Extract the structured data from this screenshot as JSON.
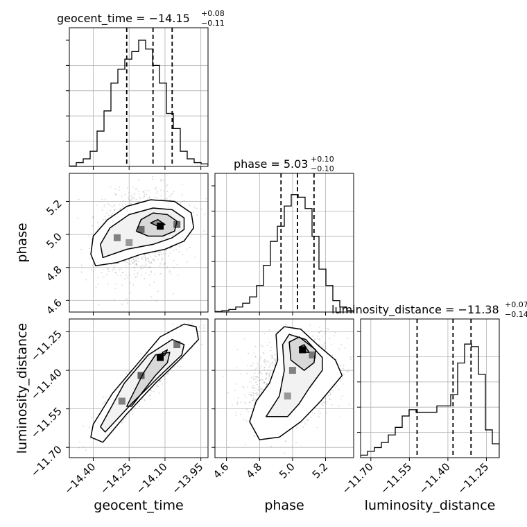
{
  "chart_data": {
    "type": "corner",
    "parameters": [
      "geocent_time",
      "phase",
      "luminosity_distance"
    ],
    "titles": [
      {
        "param": "geocent_time",
        "prefix": "geocent_time = −14.15",
        "plus": "+0.08",
        "minus": "−0.11"
      },
      {
        "param": "phase",
        "prefix": "phase = 5.03",
        "plus": "+0.10",
        "minus": "−0.10"
      },
      {
        "param": "luminosity_distance",
        "prefix": "luminosity_distance = −11.38",
        "plus": "+0.07",
        "minus": "−0.14"
      }
    ],
    "axis_labels": {
      "x": [
        "geocent_time",
        "phase",
        "luminosity_distance"
      ],
      "y": [
        "phase",
        "luminosity_distance"
      ]
    },
    "ranges": {
      "geocent_time": [
        -14.5,
        -13.92
      ],
      "phase": [
        4.53,
        5.37
      ],
      "luminosity_distance": [
        -11.74,
        -11.2
      ]
    },
    "ticks": {
      "geocent_time": {
        "values": [
          -14.4,
          -14.25,
          -14.1,
          -13.95
        ],
        "labels": [
          "−14.40",
          "−14.25",
          "−14.10",
          "−13.95"
        ]
      },
      "phase": {
        "values": [
          4.6,
          4.8,
          5.0,
          5.2
        ],
        "labels": [
          "4.6",
          "4.8",
          "5.0",
          "5.2"
        ]
      },
      "luminosity_distance": {
        "values": [
          -11.7,
          -11.55,
          -11.4,
          -11.25
        ],
        "labels": [
          "−11.70",
          "−11.55",
          "−11.40",
          "−11.25"
        ]
      }
    },
    "quantiles": {
      "geocent_time": [
        -14.26,
        -14.15,
        -14.07
      ],
      "phase": [
        4.93,
        5.03,
        5.13
      ],
      "luminosity_distance": [
        -11.52,
        -11.38,
        -11.31
      ]
    },
    "histograms": {
      "geocent_time": [
        0.003,
        0.03,
        0.06,
        0.12,
        0.28,
        0.44,
        0.66,
        0.77,
        0.85,
        0.91,
        1.0,
        0.93,
        0.8,
        0.66,
        0.42,
        0.3,
        0.12,
        0.06,
        0.03,
        0.02
      ],
      "phase": [
        0.004,
        0.01,
        0.02,
        0.04,
        0.07,
        0.12,
        0.21,
        0.37,
        0.56,
        0.68,
        0.84,
        0.93,
        0.91,
        0.82,
        0.6,
        0.34,
        0.21,
        0.09,
        0.04,
        0.01
      ],
      "luminosity_distance": [
        0.02,
        0.05,
        0.08,
        0.12,
        0.18,
        0.24,
        0.33,
        0.38,
        0.36,
        0.36,
        0.36,
        0.41,
        0.41,
        0.5,
        0.75,
        0.9,
        0.88,
        0.66,
        0.22,
        0.11
      ]
    },
    "contour_panels": [
      {
        "x": "geocent_time",
        "y": "phase",
        "levels": [
          [
            [
              -14.39,
              4.81
            ],
            [
              -14.41,
              4.88
            ],
            [
              -14.4,
              4.99
            ],
            [
              -14.34,
              5.09
            ],
            [
              -14.26,
              5.17
            ],
            [
              -14.16,
              5.21
            ],
            [
              -14.06,
              5.2
            ],
            [
              -13.99,
              5.13
            ],
            [
              -13.98,
              5.04
            ],
            [
              -14.02,
              4.96
            ],
            [
              -14.1,
              4.91
            ],
            [
              -14.2,
              4.88
            ],
            [
              -14.3,
              4.83
            ]
          ],
          [
            [
              -14.36,
              4.86
            ],
            [
              -14.37,
              4.94
            ],
            [
              -14.33,
              5.04
            ],
            [
              -14.25,
              5.12
            ],
            [
              -14.15,
              5.16
            ],
            [
              -14.07,
              5.15
            ],
            [
              -14.02,
              5.1
            ],
            [
              -14.02,
              5.03
            ],
            [
              -14.07,
              4.98
            ],
            [
              -14.15,
              4.94
            ],
            [
              -14.26,
              4.91
            ]
          ],
          [
            [
              -14.22,
              5.02
            ],
            [
              -14.2,
              5.09
            ],
            [
              -14.15,
              5.13
            ],
            [
              -14.09,
              5.12
            ],
            [
              -14.05,
              5.08
            ],
            [
              -14.06,
              5.02
            ],
            [
              -14.11,
              4.99
            ],
            [
              -14.17,
              4.99
            ]
          ],
          [
            [
              -14.16,
              5.07
            ],
            [
              -14.13,
              5.09
            ],
            [
              -14.1,
              5.06
            ],
            [
              -14.13,
              5.05
            ]
          ]
        ],
        "density": [
          {
            "x": -14.12,
            "y": 5.05,
            "w": 1.0
          },
          {
            "x": -14.2,
            "y": 5.03,
            "w": 0.55
          },
          {
            "x": -14.05,
            "y": 5.06,
            "w": 0.55
          },
          {
            "x": -14.3,
            "y": 4.98,
            "w": 0.45
          },
          {
            "x": -14.25,
            "y": 4.95,
            "w": 0.35
          }
        ]
      },
      {
        "x": "geocent_time",
        "y": "luminosity_distance",
        "levels": [
          [
            [
              -14.4,
              -11.61
            ],
            [
              -14.41,
              -11.66
            ],
            [
              -14.36,
              -11.68
            ],
            [
              -14.26,
              -11.57
            ],
            [
              -14.14,
              -11.45
            ],
            [
              -14.04,
              -11.36
            ],
            [
              -13.96,
              -11.28
            ],
            [
              -13.97,
              -11.23
            ],
            [
              -14.02,
              -11.22
            ],
            [
              -14.12,
              -11.27
            ],
            [
              -14.22,
              -11.38
            ],
            [
              -14.32,
              -11.49
            ]
          ],
          [
            [
              -14.37,
              -11.62
            ],
            [
              -14.35,
              -11.64
            ],
            [
              -14.24,
              -11.53
            ],
            [
              -14.12,
              -11.42
            ],
            [
              -14.03,
              -11.34
            ],
            [
              -14.02,
              -11.3
            ],
            [
              -14.07,
              -11.28
            ],
            [
              -14.17,
              -11.34
            ],
            [
              -14.27,
              -11.45
            ]
          ],
          [
            [
              -14.26,
              -11.54
            ],
            [
              -14.24,
              -11.54
            ],
            [
              -14.14,
              -11.42
            ],
            [
              -14.09,
              -11.37
            ],
            [
              -14.08,
              -11.33
            ],
            [
              -14.14,
              -11.34
            ],
            [
              -14.19,
              -11.41
            ]
          ],
          [
            [
              -14.12,
              -11.35
            ],
            [
              -14.1,
              -11.34
            ],
            [
              -14.09,
              -11.32
            ],
            [
              -14.11,
              -11.33
            ]
          ]
        ],
        "density": [
          {
            "x": -14.12,
            "y": -11.35,
            "w": 1.0
          },
          {
            "x": -14.2,
            "y": -11.42,
            "w": 0.6
          },
          {
            "x": -14.28,
            "y": -11.52,
            "w": 0.45
          },
          {
            "x": -14.05,
            "y": -11.3,
            "w": 0.5
          }
        ]
      },
      {
        "x": "phase",
        "y": "luminosity_distance",
        "levels": [
          [
            [
              4.74,
              -11.6
            ],
            [
              4.78,
              -11.52
            ],
            [
              4.86,
              -11.45
            ],
            [
              4.91,
              -11.36
            ],
            [
              4.9,
              -11.26
            ],
            [
              4.95,
              -11.23
            ],
            [
              5.05,
              -11.24
            ],
            [
              5.15,
              -11.3
            ],
            [
              5.26,
              -11.36
            ],
            [
              5.3,
              -11.42
            ],
            [
              5.17,
              -11.52
            ],
            [
              5.05,
              -11.6
            ],
            [
              4.92,
              -11.66
            ],
            [
              4.8,
              -11.67
            ]
          ],
          [
            [
              4.84,
              -11.58
            ],
            [
              4.92,
              -11.5
            ],
            [
              4.95,
              -11.4
            ],
            [
              4.94,
              -11.3
            ],
            [
              4.98,
              -11.26
            ],
            [
              5.08,
              -11.28
            ],
            [
              5.18,
              -11.35
            ],
            [
              5.18,
              -11.4
            ],
            [
              5.1,
              -11.47
            ],
            [
              5.04,
              -11.53
            ],
            [
              4.97,
              -11.58
            ]
          ],
          [
            [
              4.99,
              -11.36
            ],
            [
              4.98,
              -11.29
            ],
            [
              5.04,
              -11.27
            ],
            [
              5.14,
              -11.32
            ],
            [
              5.13,
              -11.37
            ],
            [
              5.07,
              -11.4
            ]
          ],
          [
            [
              5.04,
              -11.31
            ],
            [
              5.07,
              -11.3
            ],
            [
              5.1,
              -11.33
            ],
            [
              5.06,
              -11.33
            ]
          ]
        ],
        "density": [
          {
            "x": 5.06,
            "y": -11.32,
            "w": 1.0
          },
          {
            "x": 5.0,
            "y": -11.4,
            "w": 0.45
          },
          {
            "x": 4.97,
            "y": -11.5,
            "w": 0.35
          },
          {
            "x": 5.12,
            "y": -11.34,
            "w": 0.5
          }
        ]
      }
    ],
    "grid": true
  }
}
